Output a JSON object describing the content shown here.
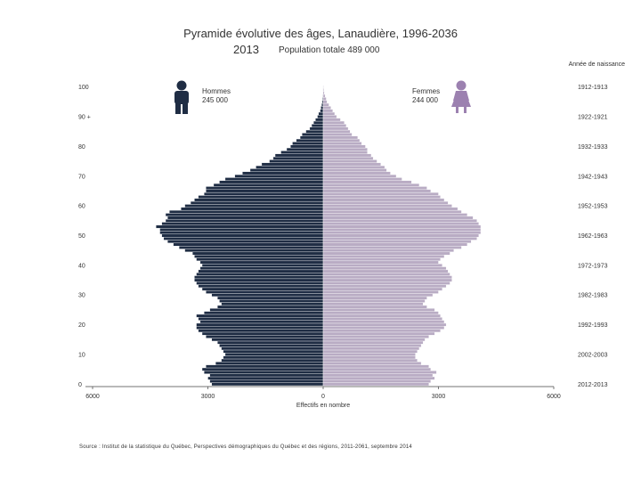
{
  "header": {
    "title": "Pyramide évolutive des âges, Lanaudière, 1996-2036",
    "year": "2013",
    "total_label": "Population totale 489 000"
  },
  "legend": {
    "men_label": "Hommes",
    "men_total": "245 000",
    "women_label": "Femmes",
    "women_total": "244 000",
    "birth_year_header": "Année de naissance",
    "men_icon": "man-icon",
    "women_icon": "woman-icon"
  },
  "footer": {
    "source": "Source : Institut de la statistique du Québec, Perspectives démographiques du Québec et des régions, 2011-2061, septembre 2014"
  },
  "colors": {
    "men": "#1f2d44",
    "women": "#b9acc4",
    "bar_edge": "#ffffff",
    "axis": "#444444"
  },
  "chart_data": {
    "type": "bar",
    "orientation": "horizontal-pyramid",
    "xlabel": "Effectifs en nombre",
    "xlim": [
      -6000,
      6000
    ],
    "x_ticks": [
      -6000,
      -3000,
      0,
      3000,
      6000
    ],
    "x_tick_labels": [
      "6000",
      "3000",
      "0",
      "3000",
      "6000"
    ],
    "ylim": [
      0,
      100
    ],
    "y_ticks": [
      0,
      10,
      20,
      30,
      40,
      50,
      60,
      70,
      80,
      90,
      100
    ],
    "y_tick_labels": [
      "0",
      "10",
      "20",
      "30",
      "40",
      "50",
      "60",
      "70",
      "80",
      "90 +",
      "100"
    ],
    "birth_year_labels": [
      {
        "age": 0,
        "label": "2012-2013"
      },
      {
        "age": 10,
        "label": "2002-2003"
      },
      {
        "age": 20,
        "label": "1992-1993"
      },
      {
        "age": 30,
        "label": "1982-1983"
      },
      {
        "age": 40,
        "label": "1972-1973"
      },
      {
        "age": 50,
        "label": "1962-1963"
      },
      {
        "age": 60,
        "label": "1952-1953"
      },
      {
        "age": 70,
        "label": "1942-1943"
      },
      {
        "age": 80,
        "label": "1932-1933"
      },
      {
        "age": 90,
        "label": "1922-1921"
      },
      {
        "age": 100,
        "label": "1912-1913"
      }
    ],
    "ages": [
      0,
      1,
      2,
      3,
      4,
      5,
      6,
      7,
      8,
      9,
      10,
      11,
      12,
      13,
      14,
      15,
      16,
      17,
      18,
      19,
      20,
      21,
      22,
      23,
      24,
      25,
      26,
      27,
      28,
      29,
      30,
      31,
      32,
      33,
      34,
      35,
      36,
      37,
      38,
      39,
      40,
      41,
      42,
      43,
      44,
      45,
      46,
      47,
      48,
      49,
      50,
      51,
      52,
      53,
      54,
      55,
      56,
      57,
      58,
      59,
      60,
      61,
      62,
      63,
      64,
      65,
      66,
      67,
      68,
      69,
      70,
      71,
      72,
      73,
      74,
      75,
      76,
      77,
      78,
      79,
      80,
      81,
      82,
      83,
      84,
      85,
      86,
      87,
      88,
      89,
      90,
      91,
      92,
      93,
      94,
      95,
      96,
      97,
      98,
      99,
      100
    ],
    "series": [
      {
        "name": "Hommes",
        "values": [
          2900,
          2950,
          3000,
          2950,
          3100,
          3150,
          3050,
          2800,
          2650,
          2600,
          2550,
          2600,
          2650,
          2700,
          2750,
          2900,
          3050,
          3150,
          3250,
          3300,
          3300,
          3200,
          3250,
          3300,
          3100,
          2950,
          2750,
          2650,
          2700,
          2750,
          2900,
          3050,
          3150,
          3250,
          3300,
          3350,
          3350,
          3300,
          3250,
          3200,
          3150,
          3200,
          3300,
          3350,
          3400,
          3600,
          3750,
          3900,
          4050,
          4150,
          4200,
          4250,
          4250,
          4350,
          4200,
          4100,
          4050,
          4100,
          4000,
          3700,
          3600,
          3450,
          3350,
          3250,
          3100,
          3050,
          3050,
          2850,
          2700,
          2550,
          2300,
          2100,
          1900,
          1750,
          1600,
          1400,
          1300,
          1250,
          1100,
          950,
          850,
          800,
          700,
          600,
          550,
          450,
          350,
          300,
          250,
          200,
          150,
          120,
          80,
          60,
          40,
          30,
          20,
          10,
          5,
          2,
          1
        ]
      },
      {
        "name": "Femmes",
        "values": [
          2750,
          2800,
          2900,
          2850,
          2950,
          2800,
          2750,
          2550,
          2450,
          2400,
          2400,
          2450,
          2500,
          2550,
          2600,
          2650,
          2750,
          2900,
          3050,
          3150,
          3200,
          3150,
          3100,
          3050,
          3000,
          2900,
          2700,
          2600,
          2650,
          2700,
          2850,
          3000,
          3100,
          3200,
          3300,
          3350,
          3350,
          3300,
          3250,
          3200,
          3100,
          3000,
          3050,
          3150,
          3300,
          3400,
          3600,
          3750,
          3850,
          4000,
          4050,
          4100,
          4100,
          4100,
          4050,
          4000,
          3900,
          3750,
          3600,
          3500,
          3350,
          3250,
          3150,
          3050,
          3000,
          2800,
          2700,
          2500,
          2300,
          2050,
          1900,
          1750,
          1650,
          1600,
          1500,
          1400,
          1300,
          1250,
          1150,
          1150,
          1100,
          1000,
          950,
          900,
          750,
          700,
          650,
          600,
          550,
          450,
          350,
          300,
          250,
          200,
          150,
          100,
          80,
          50,
          30,
          20,
          10
        ]
      }
    ]
  }
}
